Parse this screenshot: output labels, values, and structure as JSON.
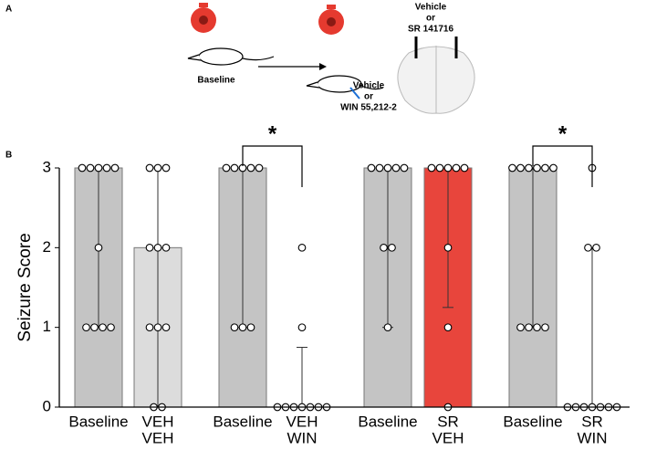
{
  "panel_labels": [
    "A",
    "B"
  ],
  "panel_a": {
    "baseline": "Baseline",
    "injection": [
      "Vehicle",
      "or",
      "WIN 55,212-2"
    ],
    "infusion": [
      "Vehicle",
      "or",
      "SR 141716"
    ]
  },
  "chart_data": {
    "type": "bar",
    "ylabel": "Seizure Score",
    "categories": [
      "Baseline",
      [
        "VEH",
        "VEH"
      ],
      "Baseline",
      [
        "VEH",
        "WIN"
      ],
      "Baseline",
      [
        "SR",
        "VEH"
      ],
      "Baseline",
      [
        "SR",
        "WIN"
      ]
    ],
    "values": [
      3,
      2,
      3,
      0,
      3,
      3,
      3,
      0
    ],
    "whisker_low": [
      1,
      0,
      1,
      0,
      1,
      1.25,
      1,
      0
    ],
    "whisker_high": [
      3,
      3,
      3,
      0.75,
      3,
      3,
      3,
      2
    ],
    "colors": [
      "#c4c4c4",
      "#dcdcdc",
      "#c4c4c4",
      "#c4c4c4",
      "#c4c4c4",
      "#e8453c",
      "#c4c4c4",
      "#c4c4c4"
    ],
    "points": [
      [
        3,
        3,
        3,
        3,
        3,
        2,
        1,
        1,
        1,
        1
      ],
      [
        3,
        3,
        3,
        2,
        2,
        2,
        1,
        1,
        1,
        0,
        0
      ],
      [
        3,
        3,
        3,
        3,
        3,
        1,
        1,
        1
      ],
      [
        2,
        1,
        0,
        0,
        0,
        0,
        0,
        0,
        0
      ],
      [
        3,
        3,
        3,
        3,
        3,
        2,
        2,
        1
      ],
      [
        3,
        3,
        3,
        3,
        3,
        2,
        1,
        0
      ],
      [
        3,
        3,
        3,
        3,
        3,
        3,
        1,
        1,
        1,
        1
      ],
      [
        3,
        2,
        2,
        0,
        0,
        0,
        0,
        0,
        0,
        0
      ]
    ],
    "annotations": [
      {
        "text": "*",
        "from": 2,
        "to": 3
      },
      {
        "text": "*",
        "from": 6,
        "to": 7
      }
    ],
    "ylim": [
      0,
      3
    ],
    "yticks": [
      0,
      1,
      2,
      3
    ]
  }
}
